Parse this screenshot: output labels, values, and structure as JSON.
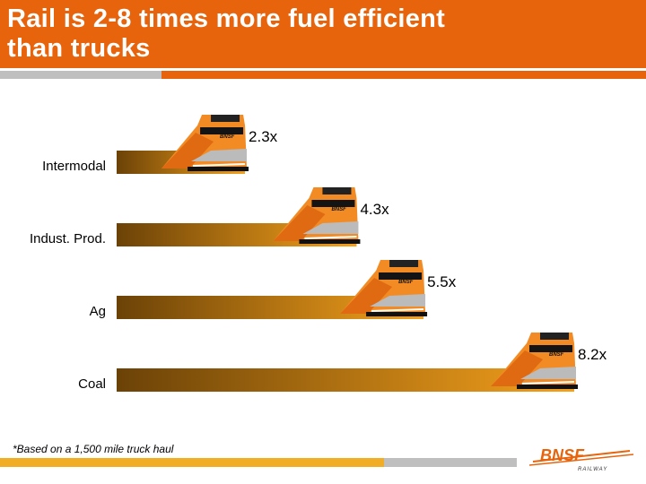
{
  "title": {
    "line1": "Rail is 2-8 times more fuel efficient",
    "line2": "than trucks"
  },
  "footnote": "*Based on a 1,500 mile truck haul",
  "brand": {
    "name": "BNSF",
    "sub": "RAILWAY"
  },
  "colors": {
    "accent": "#e8640c",
    "bar_dark": "#6b4207",
    "bar_light": "#f5a11c",
    "yellow": "#f2ad27"
  },
  "chart_data": {
    "type": "bar",
    "orientation": "horizontal",
    "title": "Rail is 2-8 times more fuel efficient than trucks",
    "categories": [
      "Intermodal",
      "Indust. Prod.",
      "Ag",
      "Coal"
    ],
    "values": [
      2.3,
      4.3,
      5.5,
      8.2
    ],
    "data_labels": [
      "2.3x",
      "4.3x",
      "5.5x",
      "8.2x"
    ],
    "unit": "x",
    "xlim": [
      0,
      8.2
    ],
    "legend": "none",
    "grid": false
  }
}
